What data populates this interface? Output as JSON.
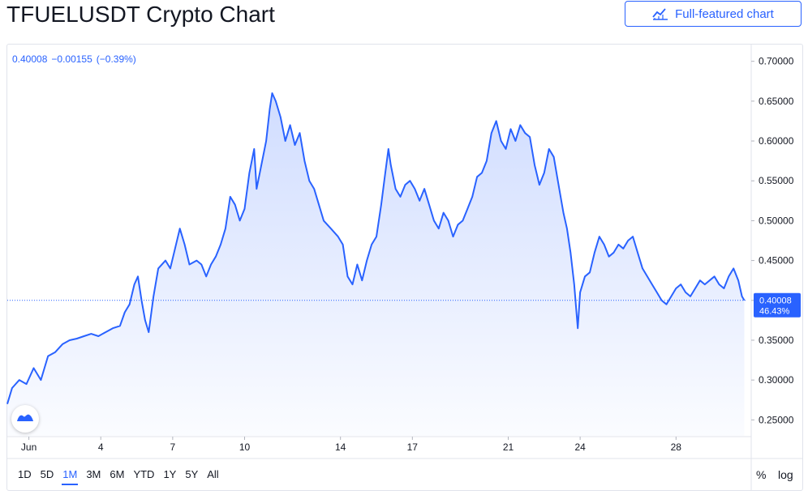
{
  "header": {
    "title": "TFUELUSDT Crypto Chart",
    "full_chart_label": "Full-featured chart"
  },
  "legend": {
    "price": "0.40008",
    "change": "−0.00155",
    "change_pct": "(−0.39%)"
  },
  "last_price_tag": {
    "price": "0.40008",
    "pct": "46.43%"
  },
  "timeframes": [
    "1D",
    "5D",
    "1M",
    "3M",
    "6M",
    "YTD",
    "1Y",
    "5Y",
    "All"
  ],
  "active_timeframe": "1M",
  "scale_options": {
    "percent": "%",
    "log": "log"
  },
  "colors": {
    "line": "#2962ff",
    "accent": "#2962ff",
    "text": "#131722",
    "grid": "#f0f3fa"
  },
  "icons": {
    "full_chart": "chart-line-icon",
    "logo": "tradingview-logo-icon"
  },
  "chart_data": {
    "type": "area",
    "title": "TFUELUSDT Crypto Chart",
    "xlabel": "",
    "ylabel": "",
    "x_ticks": [
      {
        "label": "Jun",
        "day": 1
      },
      {
        "label": "4",
        "day": 4
      },
      {
        "label": "7",
        "day": 7
      },
      {
        "label": "10",
        "day": 10
      },
      {
        "label": "14",
        "day": 14
      },
      {
        "label": "17",
        "day": 17
      },
      {
        "label": "21",
        "day": 21
      },
      {
        "label": "24",
        "day": 24
      },
      {
        "label": "28",
        "day": 28
      }
    ],
    "y_ticks": [
      "0.25000",
      "0.30000",
      "0.35000",
      "0.40000",
      "0.45000",
      "0.50000",
      "0.55000",
      "0.60000",
      "0.65000",
      "0.70000"
    ],
    "ylim": [
      0.23,
      0.72
    ],
    "xlim": [
      0.1,
      30.9
    ],
    "grid": false,
    "series": [
      {
        "values": [
          [
            0.1,
            0.27
          ],
          [
            0.3,
            0.29
          ],
          [
            0.6,
            0.3
          ],
          [
            0.9,
            0.295
          ],
          [
            1.2,
            0.315
          ],
          [
            1.5,
            0.3
          ],
          [
            1.8,
            0.33
          ],
          [
            2.1,
            0.335
          ],
          [
            2.4,
            0.345
          ],
          [
            2.7,
            0.35
          ],
          [
            3.0,
            0.352
          ],
          [
            3.3,
            0.355
          ],
          [
            3.6,
            0.358
          ],
          [
            3.9,
            0.355
          ],
          [
            4.2,
            0.36
          ],
          [
            4.5,
            0.365
          ],
          [
            4.8,
            0.368
          ],
          [
            5.0,
            0.385
          ],
          [
            5.2,
            0.395
          ],
          [
            5.4,
            0.42
          ],
          [
            5.55,
            0.43
          ],
          [
            5.7,
            0.4
          ],
          [
            5.85,
            0.375
          ],
          [
            6.0,
            0.36
          ],
          [
            6.2,
            0.405
          ],
          [
            6.4,
            0.44
          ],
          [
            6.7,
            0.45
          ],
          [
            6.9,
            0.44
          ],
          [
            7.1,
            0.465
          ],
          [
            7.3,
            0.49
          ],
          [
            7.5,
            0.47
          ],
          [
            7.7,
            0.445
          ],
          [
            8.0,
            0.45
          ],
          [
            8.2,
            0.445
          ],
          [
            8.4,
            0.43
          ],
          [
            8.6,
            0.445
          ],
          [
            8.8,
            0.455
          ],
          [
            9.0,
            0.47
          ],
          [
            9.2,
            0.49
          ],
          [
            9.4,
            0.53
          ],
          [
            9.6,
            0.52
          ],
          [
            9.8,
            0.5
          ],
          [
            10.0,
            0.515
          ],
          [
            10.2,
            0.56
          ],
          [
            10.4,
            0.59
          ],
          [
            10.5,
            0.54
          ],
          [
            10.7,
            0.57
          ],
          [
            10.9,
            0.6
          ],
          [
            11.05,
            0.64
          ],
          [
            11.15,
            0.66
          ],
          [
            11.3,
            0.65
          ],
          [
            11.5,
            0.63
          ],
          [
            11.7,
            0.6
          ],
          [
            11.9,
            0.62
          ],
          [
            12.1,
            0.595
          ],
          [
            12.3,
            0.61
          ],
          [
            12.5,
            0.575
          ],
          [
            12.7,
            0.55
          ],
          [
            12.9,
            0.54
          ],
          [
            13.1,
            0.52
          ],
          [
            13.3,
            0.5
          ],
          [
            13.6,
            0.49
          ],
          [
            13.9,
            0.48
          ],
          [
            14.1,
            0.47
          ],
          [
            14.3,
            0.43
          ],
          [
            14.5,
            0.42
          ],
          [
            14.7,
            0.445
          ],
          [
            14.9,
            0.425
          ],
          [
            15.1,
            0.45
          ],
          [
            15.3,
            0.47
          ],
          [
            15.5,
            0.48
          ],
          [
            15.7,
            0.52
          ],
          [
            15.85,
            0.555
          ],
          [
            16.0,
            0.59
          ],
          [
            16.1,
            0.57
          ],
          [
            16.3,
            0.54
          ],
          [
            16.5,
            0.53
          ],
          [
            16.7,
            0.545
          ],
          [
            16.9,
            0.55
          ],
          [
            17.1,
            0.54
          ],
          [
            17.3,
            0.525
          ],
          [
            17.5,
            0.54
          ],
          [
            17.7,
            0.52
          ],
          [
            17.9,
            0.5
          ],
          [
            18.1,
            0.49
          ],
          [
            18.3,
            0.51
          ],
          [
            18.5,
            0.5
          ],
          [
            18.7,
            0.48
          ],
          [
            18.9,
            0.495
          ],
          [
            19.1,
            0.5
          ],
          [
            19.3,
            0.515
          ],
          [
            19.5,
            0.53
          ],
          [
            19.7,
            0.555
          ],
          [
            19.9,
            0.56
          ],
          [
            20.1,
            0.575
          ],
          [
            20.3,
            0.61
          ],
          [
            20.5,
            0.625
          ],
          [
            20.7,
            0.6
          ],
          [
            20.9,
            0.59
          ],
          [
            21.1,
            0.615
          ],
          [
            21.3,
            0.6
          ],
          [
            21.5,
            0.62
          ],
          [
            21.7,
            0.61
          ],
          [
            21.9,
            0.605
          ],
          [
            22.1,
            0.57
          ],
          [
            22.3,
            0.545
          ],
          [
            22.5,
            0.56
          ],
          [
            22.7,
            0.59
          ],
          [
            22.9,
            0.58
          ],
          [
            23.1,
            0.545
          ],
          [
            23.3,
            0.51
          ],
          [
            23.45,
            0.49
          ],
          [
            23.6,
            0.46
          ],
          [
            23.75,
            0.42
          ],
          [
            23.9,
            0.365
          ],
          [
            24.0,
            0.41
          ],
          [
            24.2,
            0.43
          ],
          [
            24.4,
            0.435
          ],
          [
            24.6,
            0.46
          ],
          [
            24.8,
            0.48
          ],
          [
            25.0,
            0.47
          ],
          [
            25.2,
            0.455
          ],
          [
            25.4,
            0.46
          ],
          [
            25.6,
            0.47
          ],
          [
            25.8,
            0.465
          ],
          [
            26.0,
            0.475
          ],
          [
            26.2,
            0.48
          ],
          [
            26.4,
            0.46
          ],
          [
            26.6,
            0.44
          ],
          [
            26.8,
            0.43
          ],
          [
            27.0,
            0.42
          ],
          [
            27.2,
            0.41
          ],
          [
            27.4,
            0.4
          ],
          [
            27.6,
            0.395
          ],
          [
            27.8,
            0.405
          ],
          [
            28.0,
            0.415
          ],
          [
            28.2,
            0.42
          ],
          [
            28.4,
            0.41
          ],
          [
            28.6,
            0.405
          ],
          [
            28.8,
            0.415
          ],
          [
            29.0,
            0.425
          ],
          [
            29.2,
            0.42
          ],
          [
            29.4,
            0.425
          ],
          [
            29.6,
            0.43
          ],
          [
            29.8,
            0.42
          ],
          [
            30.0,
            0.415
          ],
          [
            30.2,
            0.43
          ],
          [
            30.4,
            0.44
          ],
          [
            30.6,
            0.425
          ],
          [
            30.75,
            0.405
          ],
          [
            30.85,
            0.4
          ]
        ]
      }
    ],
    "last_value": 0.40008
  }
}
